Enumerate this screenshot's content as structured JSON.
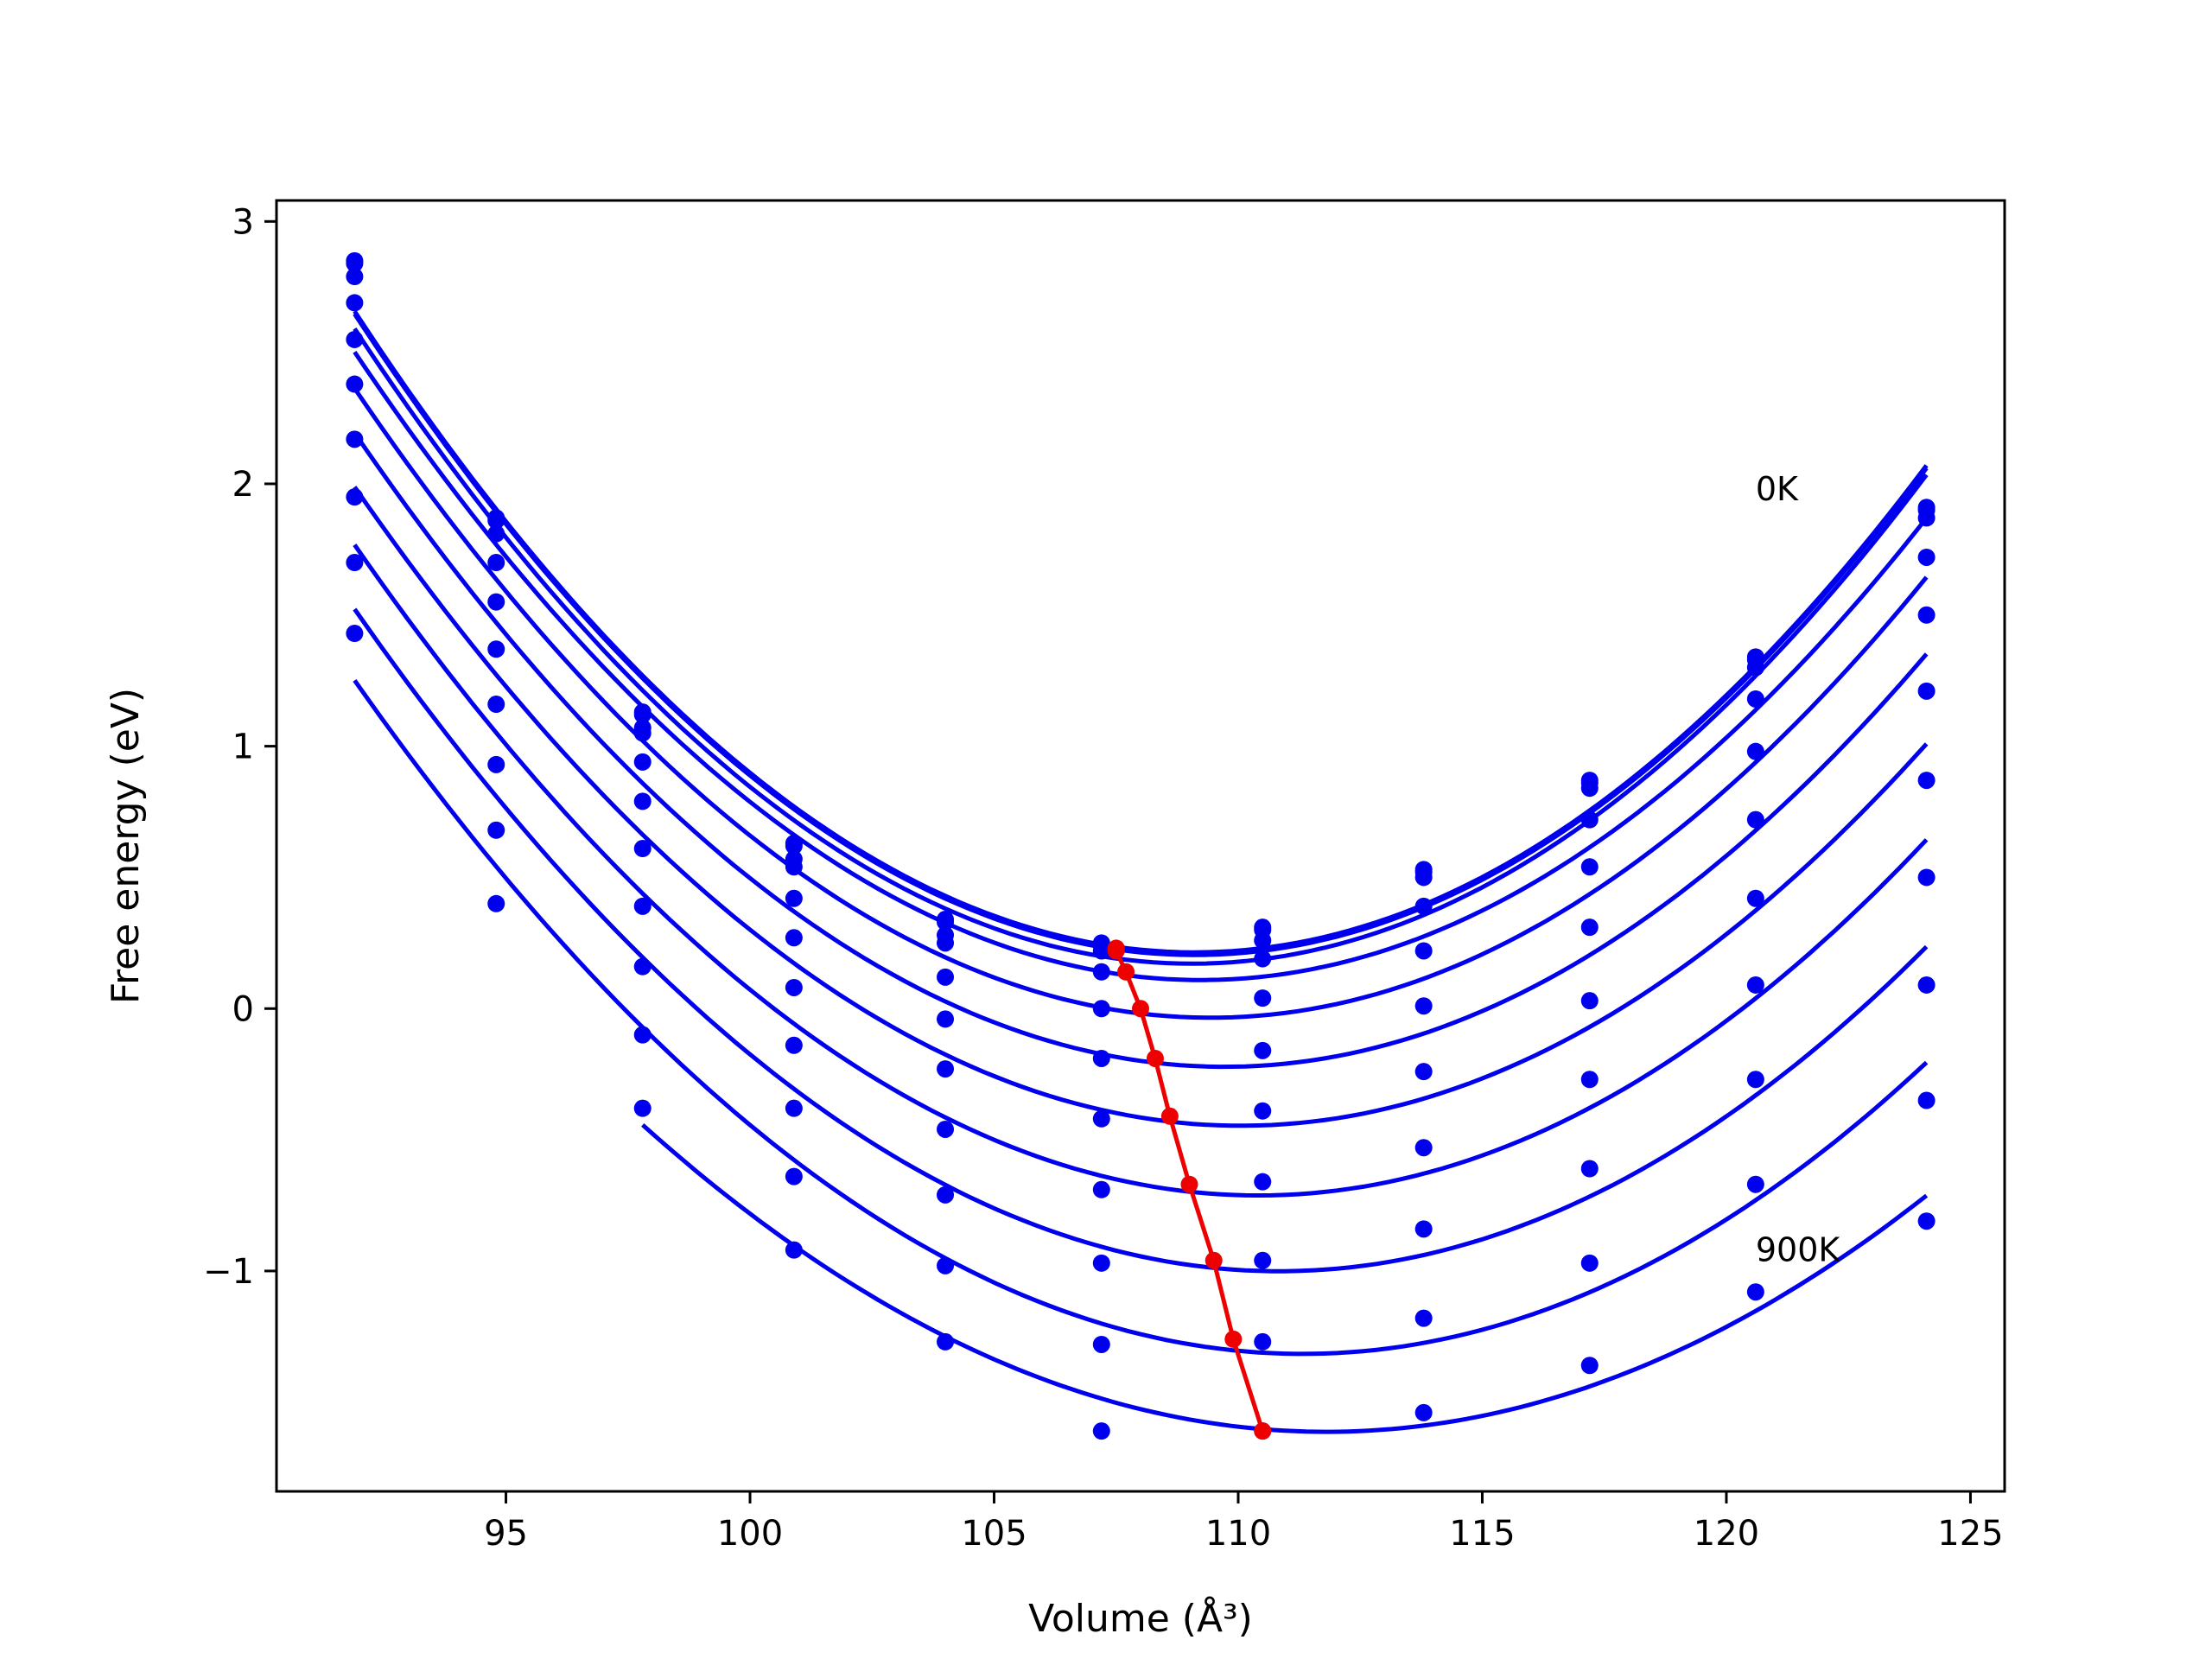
{
  "chart_data": {
    "type": "scatter",
    "xlabel": "Volume (Å³)",
    "ylabel": "Free energy (eV)",
    "xlim": [
      90.3,
      125.7
    ],
    "ylim": [
      -1.84,
      3.08
    ],
    "xticks": [
      95,
      100,
      105,
      110,
      115,
      120,
      125
    ],
    "yticks": [
      -1,
      0,
      1,
      2,
      3
    ],
    "ytick_labels": [
      "−1",
      "0",
      "1",
      "2",
      "3"
    ],
    "grid": false,
    "annotations": [
      {
        "text": "0K",
        "x": 120.6,
        "y": 1.98
      },
      {
        "text": "900K",
        "x": 120.6,
        "y": -0.92
      }
    ],
    "colors": {
      "curves": "#0000ee",
      "minima": "#ee0000"
    },
    "x": [
      91.9,
      94.8,
      97.8,
      100.9,
      104.0,
      107.2,
      110.5,
      113.8,
      117.2,
      120.6,
      124.1
    ],
    "series": [
      {
        "values": [
          2.85,
          1.87,
          1.13,
          0.63,
          0.34,
          0.25,
          0.31,
          0.53,
          0.87,
          1.34,
          1.91
        ]
      },
      {
        "values": [
          2.84,
          1.86,
          1.12,
          0.62,
          0.33,
          0.24,
          0.3,
          0.52,
          0.86,
          1.33,
          1.9
        ]
      },
      {
        "values": [
          2.79,
          1.81,
          1.07,
          0.57,
          0.28,
          0.22,
          0.26,
          0.5,
          0.84,
          1.3,
          1.87
        ]
      },
      {
        "values": [
          2.69,
          1.7,
          1.05,
          0.54,
          0.25,
          0.14,
          0.19,
          0.39,
          0.72,
          1.18,
          1.72
        ]
      },
      {
        "values": [
          2.55,
          1.55,
          0.94,
          0.42,
          0.12,
          0.0,
          0.04,
          0.22,
          0.54,
          0.98,
          1.5
        ]
      },
      {
        "values": [
          2.38,
          1.37,
          0.79,
          0.27,
          -0.04,
          -0.19,
          -0.16,
          0.01,
          0.31,
          0.72,
          1.21
        ]
      },
      {
        "values": [
          2.17,
          1.16,
          0.61,
          0.08,
          -0.23,
          -0.42,
          -0.39,
          -0.24,
          0.03,
          0.42,
          0.87
        ]
      },
      {
        "values": [
          1.95,
          0.93,
          0.39,
          -0.14,
          -0.46,
          -0.69,
          -0.66,
          -0.53,
          -0.27,
          0.09,
          0.5
        ]
      },
      {
        "values": [
          1.7,
          0.68,
          0.16,
          -0.38,
          -0.71,
          -0.97,
          -0.96,
          -0.84,
          -0.61,
          -0.27,
          0.09
        ]
      },
      {
        "values": [
          1.43,
          0.4,
          -0.1,
          -0.64,
          -0.98,
          -1.28,
          -1.27,
          -1.18,
          -0.97,
          -0.67,
          -0.35
        ]
      },
      {
        "values": [
          null,
          null,
          -0.38,
          -0.92,
          -1.27,
          -1.61,
          -1.61,
          -1.54,
          -1.36,
          -1.08,
          -0.81
        ]
      }
    ],
    "minima": {
      "x": [
        107.5,
        107.5,
        107.7,
        108.0,
        108.3,
        108.6,
        109.0,
        109.5,
        109.9,
        110.5
      ],
      "y": [
        0.23,
        0.22,
        0.14,
        0.0,
        -0.19,
        -0.41,
        -0.67,
        -0.96,
        -1.26,
        -1.61
      ]
    }
  }
}
